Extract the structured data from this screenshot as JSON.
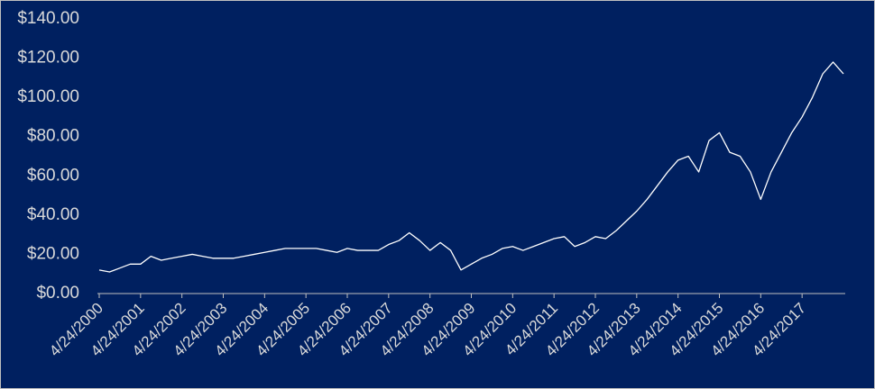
{
  "chart_data": {
    "type": "line",
    "categories": [
      "4/24/2000",
      null,
      null,
      null,
      "4/24/2001",
      null,
      null,
      null,
      "4/24/2002",
      null,
      null,
      null,
      "4/24/2003",
      null,
      null,
      null,
      "4/24/2004",
      null,
      null,
      null,
      "4/24/2005",
      null,
      null,
      null,
      "4/24/2006",
      null,
      null,
      null,
      "4/24/2007",
      null,
      null,
      null,
      "4/24/2008",
      null,
      null,
      null,
      "4/24/2009",
      null,
      null,
      null,
      "4/24/2010",
      null,
      null,
      null,
      "4/24/2011",
      null,
      null,
      null,
      "4/24/2012",
      null,
      null,
      null,
      "4/24/2013",
      null,
      null,
      null,
      "4/24/2014",
      null,
      null,
      null,
      "4/24/2015",
      null,
      null,
      null,
      "4/24/2016",
      null,
      null,
      null,
      "4/24/2017",
      null,
      null,
      null,
      null
    ],
    "values": [
      12,
      11,
      13,
      15,
      15,
      19,
      17,
      18,
      19,
      20,
      19,
      18,
      18,
      18,
      19,
      20,
      21,
      22,
      23,
      23,
      23,
      23,
      22,
      21,
      23,
      22,
      22,
      22,
      25,
      27,
      31,
      27,
      22,
      26,
      22,
      12,
      15,
      18,
      20,
      23,
      24,
      22,
      24,
      26,
      28,
      29,
      24,
      26,
      29,
      28,
      32,
      37,
      42,
      48,
      55,
      62,
      68,
      70,
      62,
      78,
      82,
      72,
      70,
      62,
      48,
      62,
      72,
      82,
      90,
      100,
      112,
      118,
      112
    ],
    "color": "#ffffff",
    "ylim": [
      0,
      140
    ],
    "yticks": [
      {
        "value": 0,
        "label": "$0.00"
      },
      {
        "value": 20,
        "label": "$20.00"
      },
      {
        "value": 40,
        "label": "$40.00"
      },
      {
        "value": 60,
        "label": "$60.00"
      },
      {
        "value": 80,
        "label": "$80.00"
      },
      {
        "value": 100,
        "label": "$100.00"
      },
      {
        "value": 120,
        "label": "$120.00"
      },
      {
        "value": 140,
        "label": "$140.00"
      }
    ],
    "grid": false
  }
}
